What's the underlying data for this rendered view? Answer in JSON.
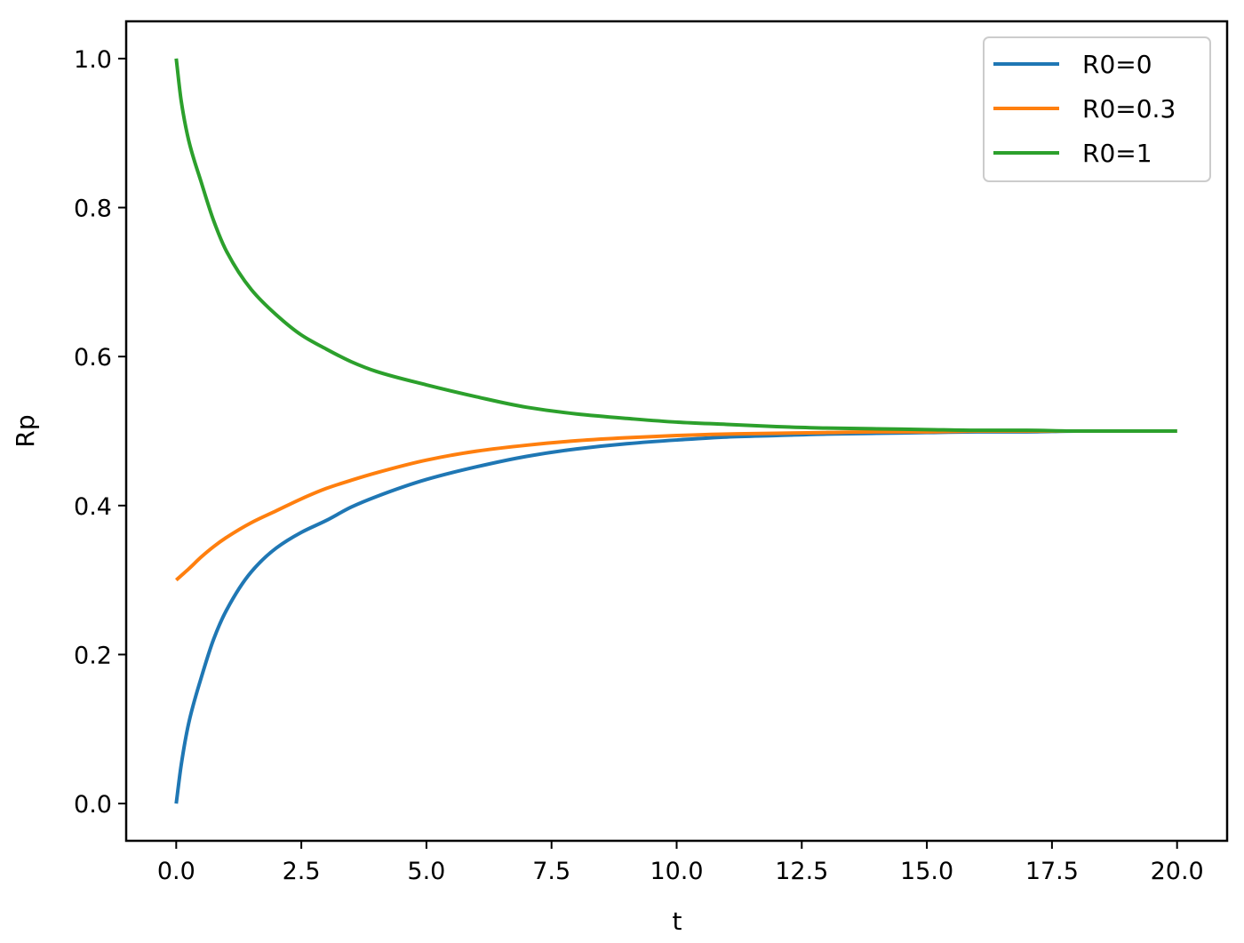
{
  "chart_data": {
    "type": "line",
    "title": "",
    "xlabel": "t",
    "ylabel": "Rp",
    "xlim": [
      -1.0,
      21.0
    ],
    "ylim": [
      -0.05,
      1.05
    ],
    "grid": false,
    "legend_position": "top-right",
    "xticks": [
      0.0,
      2.5,
      5.0,
      7.5,
      10.0,
      12.5,
      15.0,
      17.5,
      20.0
    ],
    "xtick_labels": [
      "0.0",
      "2.5",
      "5.0",
      "7.5",
      "10.0",
      "12.5",
      "15.0",
      "17.5",
      "20.0"
    ],
    "yticks": [
      0.0,
      0.2,
      0.4,
      0.6,
      0.8,
      1.0
    ],
    "ytick_labels": [
      "0.0",
      "0.2",
      "0.4",
      "0.6",
      "0.8",
      "1.0"
    ],
    "x": [
      0,
      0.1,
      0.25,
      0.5,
      0.75,
      1,
      1.5,
      2,
      2.5,
      3,
      3.5,
      4,
      5,
      6,
      7,
      8,
      9,
      10,
      11,
      12,
      13,
      14,
      15,
      16,
      17,
      18,
      19,
      20
    ],
    "series": [
      {
        "name": "R0=0",
        "color": "#1f77b4",
        "values": [
          0.0,
          0.052,
          0.108,
          0.169,
          0.221,
          0.259,
          0.311,
          0.343,
          0.364,
          0.38,
          0.398,
          0.412,
          0.435,
          0.452,
          0.466,
          0.476,
          0.483,
          0.488,
          0.492,
          0.494,
          0.496,
          0.497,
          0.498,
          0.499,
          0.499,
          0.5,
          0.5,
          0.5
        ]
      },
      {
        "name": "R0=0.3",
        "color": "#ff7f0e",
        "values": [
          0.3,
          0.306,
          0.315,
          0.331,
          0.345,
          0.357,
          0.377,
          0.393,
          0.409,
          0.423,
          0.434,
          0.444,
          0.461,
          0.473,
          0.481,
          0.487,
          0.491,
          0.494,
          0.496,
          0.497,
          0.498,
          0.499,
          0.499,
          0.5,
          0.5,
          0.5,
          0.5,
          0.5
        ]
      },
      {
        "name": "R0=1",
        "color": "#2ca02c",
        "values": [
          1.0,
          0.943,
          0.89,
          0.834,
          0.782,
          0.742,
          0.69,
          0.656,
          0.629,
          0.61,
          0.593,
          0.58,
          0.562,
          0.546,
          0.532,
          0.523,
          0.517,
          0.512,
          0.509,
          0.506,
          0.504,
          0.503,
          0.502,
          0.501,
          0.501,
          0.5,
          0.5,
          0.5
        ]
      }
    ]
  }
}
